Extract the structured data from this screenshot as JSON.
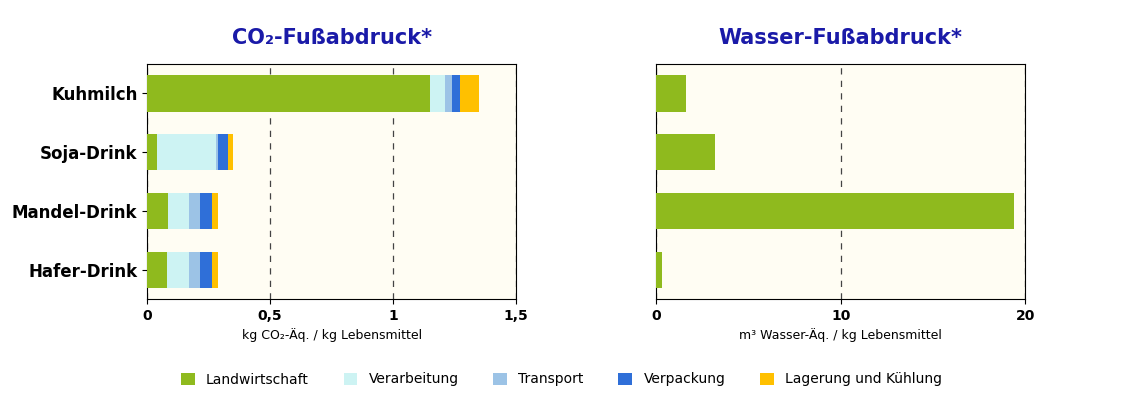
{
  "chart_data": [
    {
      "type": "bar",
      "title": "CO₂-Fußabdruck*",
      "orientation": "horizontal",
      "stacked": true,
      "categories": [
        "Kuhmilch",
        "Soja-Drink",
        "Mandel-Drink",
        "Hafer-Drink"
      ],
      "x_label": "kg CO₂-Äq. / kg Lebensmittel",
      "series": [
        {
          "name": "Landwirtschaft",
          "color": "#8fba1e",
          "values": [
            1.15,
            0.04,
            0.085,
            0.08
          ]
        },
        {
          "name": "Verarbeitung",
          "color": "#cdf3f3",
          "values": [
            0.06,
            0.24,
            0.085,
            0.09
          ]
        },
        {
          "name": "Transport",
          "color": "#9cc3e6",
          "values": [
            0.03,
            0.01,
            0.045,
            0.045
          ]
        },
        {
          "name": "Verpackung",
          "color": "#2f6fd8",
          "values": [
            0.03,
            0.04,
            0.05,
            0.05
          ]
        },
        {
          "name": "Lagerung und Kühlung",
          "color": "#ffc000",
          "values": [
            0.08,
            0.02,
            0.025,
            0.025
          ]
        }
      ],
      "xlim": [
        0,
        1.5
      ],
      "xticks": [
        0,
        {
          "value": 0.5,
          "label": "0,5"
        },
        1,
        {
          "value": 1.5,
          "label": "1,5"
        }
      ],
      "grid": true,
      "legend": "lower center"
    },
    {
      "type": "bar",
      "title": "Wasser-Fußabdruck*",
      "orientation": "horizontal",
      "stacked": true,
      "categories": [
        "Kuhmilch",
        "Soja-Drink",
        "Mandel-Drink",
        "Hafer-Drink"
      ],
      "x_label": "m³ Wasser-Äq. / kg Lebensmittel",
      "series": [
        {
          "name": "Landwirtschaft",
          "color": "#8fba1e",
          "values": [
            1.6,
            3.2,
            19.4,
            0.3
          ]
        }
      ],
      "xlim": [
        0,
        20
      ],
      "xticks": [
        0,
        10,
        20
      ],
      "grid": true,
      "tick_labels": "x"
    }
  ]
}
